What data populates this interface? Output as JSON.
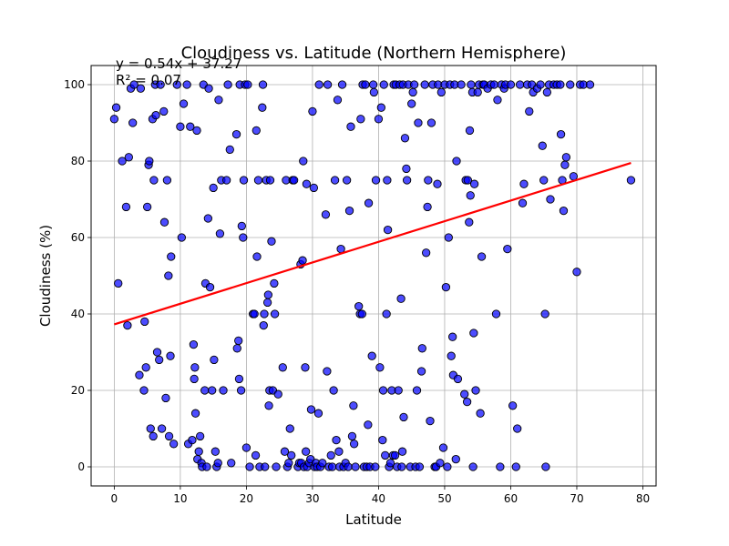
{
  "chart_data": {
    "type": "scatter",
    "title": "Cloudiness vs. Latitude (Northern Hemisphere)",
    "xlabel": "Latitude",
    "ylabel": "Cloudiness (%)",
    "xlim": [
      -3.5,
      82
    ],
    "ylim": [
      -5,
      105
    ],
    "xticks": [
      0,
      10,
      20,
      30,
      40,
      50,
      60,
      70,
      80
    ],
    "yticks": [
      0,
      20,
      40,
      60,
      80,
      100
    ],
    "grid": true,
    "point_color": "#0000ff",
    "point_edge_color": "#000000",
    "regression": {
      "slope": 0.54,
      "intercept": 37.27,
      "x_range": [
        0,
        78.2
      ],
      "color": "#ff0000"
    },
    "annotations": {
      "equation": "y = 0.54x + 37.27",
      "r_squared": "R² = 0.07"
    },
    "points": [
      [
        0,
        91
      ],
      [
        0.3,
        94
      ],
      [
        0.6,
        48
      ],
      [
        1.2,
        80
      ],
      [
        1.8,
        68
      ],
      [
        2,
        37
      ],
      [
        2.2,
        81
      ],
      [
        2.5,
        99
      ],
      [
        2.8,
        90
      ],
      [
        3,
        100
      ],
      [
        3.8,
        24
      ],
      [
        4,
        99
      ],
      [
        4.5,
        20
      ],
      [
        4.6,
        38
      ],
      [
        4.8,
        26
      ],
      [
        5,
        68
      ],
      [
        5.2,
        79
      ],
      [
        5.3,
        80
      ],
      [
        5.5,
        10
      ],
      [
        5.8,
        91
      ],
      [
        5.9,
        8
      ],
      [
        6,
        75
      ],
      [
        6.2,
        100
      ],
      [
        6.3,
        92
      ],
      [
        6.5,
        30
      ],
      [
        6.8,
        28
      ],
      [
        7,
        100
      ],
      [
        7.2,
        10
      ],
      [
        7.5,
        93
      ],
      [
        7.6,
        64
      ],
      [
        7.8,
        18
      ],
      [
        8,
        75
      ],
      [
        8.2,
        50
      ],
      [
        8.3,
        8
      ],
      [
        8.5,
        29
      ],
      [
        8.6,
        55
      ],
      [
        9,
        6
      ],
      [
        9.5,
        100
      ],
      [
        10,
        89
      ],
      [
        10.2,
        60
      ],
      [
        10.5,
        95
      ],
      [
        11,
        100
      ],
      [
        11.2,
        6
      ],
      [
        11.5,
        89
      ],
      [
        11.8,
        7
      ],
      [
        12,
        32
      ],
      [
        12.1,
        23
      ],
      [
        12.2,
        26
      ],
      [
        12.3,
        14
      ],
      [
        12.5,
        88
      ],
      [
        12.6,
        2
      ],
      [
        12.8,
        4
      ],
      [
        13,
        8
      ],
      [
        13.2,
        1
      ],
      [
        13.3,
        0
      ],
      [
        13.5,
        100
      ],
      [
        13.7,
        20
      ],
      [
        13.8,
        48
      ],
      [
        14,
        0
      ],
      [
        14.2,
        65
      ],
      [
        14.3,
        99
      ],
      [
        14.5,
        47
      ],
      [
        14.8,
        20
      ],
      [
        15,
        73
      ],
      [
        15.1,
        28
      ],
      [
        15.3,
        4
      ],
      [
        15.5,
        0
      ],
      [
        15.7,
        1
      ],
      [
        15.8,
        96
      ],
      [
        16,
        61
      ],
      [
        16.2,
        75
      ],
      [
        16.5,
        20
      ],
      [
        17,
        75
      ],
      [
        17.2,
        100
      ],
      [
        17.5,
        83
      ],
      [
        17.7,
        1
      ],
      [
        18.5,
        87
      ],
      [
        18.6,
        31
      ],
      [
        18.8,
        33
      ],
      [
        18.9,
        23
      ],
      [
        19,
        100
      ],
      [
        19.2,
        20
      ],
      [
        19.3,
        63
      ],
      [
        19.5,
        60
      ],
      [
        19.6,
        75
      ],
      [
        19.8,
        100
      ],
      [
        20,
        5
      ],
      [
        20.2,
        100
      ],
      [
        20.5,
        0
      ],
      [
        21,
        40
      ],
      [
        21.2,
        40
      ],
      [
        21.4,
        3
      ],
      [
        21.5,
        88
      ],
      [
        21.6,
        55
      ],
      [
        21.8,
        75
      ],
      [
        22,
        0
      ],
      [
        22.4,
        94
      ],
      [
        22.5,
        100
      ],
      [
        22.6,
        37
      ],
      [
        22.7,
        40
      ],
      [
        22.8,
        0
      ],
      [
        23,
        75
      ],
      [
        23.2,
        43
      ],
      [
        23.3,
        45
      ],
      [
        23.4,
        16
      ],
      [
        23.5,
        20
      ],
      [
        23.6,
        75
      ],
      [
        23.8,
        59
      ],
      [
        24,
        20
      ],
      [
        24.2,
        48
      ],
      [
        24.3,
        40
      ],
      [
        24.5,
        0
      ],
      [
        24.8,
        19
      ],
      [
        25.5,
        26
      ],
      [
        25.8,
        4
      ],
      [
        26,
        75
      ],
      [
        26.2,
        0
      ],
      [
        26.4,
        1
      ],
      [
        26.6,
        10
      ],
      [
        26.8,
        3
      ],
      [
        27,
        75
      ],
      [
        27.2,
        75
      ],
      [
        27.8,
        0
      ],
      [
        28,
        1
      ],
      [
        28.2,
        53
      ],
      [
        28.3,
        1
      ],
      [
        28.5,
        54
      ],
      [
        28.6,
        80
      ],
      [
        28.7,
        0
      ],
      [
        28.9,
        26
      ],
      [
        29,
        4
      ],
      [
        29.1,
        74
      ],
      [
        29.2,
        0
      ],
      [
        29.5,
        1
      ],
      [
        29.7,
        2
      ],
      [
        29.8,
        15
      ],
      [
        30,
        93
      ],
      [
        30.2,
        73
      ],
      [
        30.3,
        0
      ],
      [
        30.5,
        1
      ],
      [
        30.7,
        0
      ],
      [
        30.9,
        14
      ],
      [
        31,
        100
      ],
      [
        31.2,
        0
      ],
      [
        31.5,
        1
      ],
      [
        32,
        66
      ],
      [
        32.2,
        25
      ],
      [
        32.3,
        100
      ],
      [
        32.5,
        0
      ],
      [
        32.8,
        3
      ],
      [
        33,
        0
      ],
      [
        33.2,
        20
      ],
      [
        33.4,
        75
      ],
      [
        33.6,
        7
      ],
      [
        33.8,
        96
      ],
      [
        34,
        4
      ],
      [
        34.1,
        0
      ],
      [
        34.3,
        57
      ],
      [
        34.5,
        100
      ],
      [
        34.7,
        0
      ],
      [
        35,
        1
      ],
      [
        35.2,
        75
      ],
      [
        35.4,
        0
      ],
      [
        35.6,
        67
      ],
      [
        35.8,
        89
      ],
      [
        36,
        8
      ],
      [
        36.2,
        16
      ],
      [
        36.3,
        6
      ],
      [
        36.5,
        0
      ],
      [
        37,
        42
      ],
      [
        37.2,
        40
      ],
      [
        37.3,
        91
      ],
      [
        37.5,
        40
      ],
      [
        37.6,
        100
      ],
      [
        37.8,
        0
      ],
      [
        38,
        100
      ],
      [
        38.2,
        0
      ],
      [
        38.4,
        11
      ],
      [
        38.5,
        69
      ],
      [
        38.7,
        0
      ],
      [
        39,
        29
      ],
      [
        39.2,
        100
      ],
      [
        39.3,
        98
      ],
      [
        39.5,
        0
      ],
      [
        39.6,
        75
      ],
      [
        40,
        91
      ],
      [
        40.2,
        26
      ],
      [
        40.4,
        94
      ],
      [
        40.6,
        7
      ],
      [
        40.7,
        20
      ],
      [
        40.8,
        100
      ],
      [
        41,
        3
      ],
      [
        41.2,
        40
      ],
      [
        41.3,
        75
      ],
      [
        41.4,
        62
      ],
      [
        41.6,
        0
      ],
      [
        41.8,
        1
      ],
      [
        42,
        20
      ],
      [
        42.2,
        3
      ],
      [
        42.3,
        100
      ],
      [
        42.5,
        3
      ],
      [
        42.6,
        100
      ],
      [
        42.8,
        0
      ],
      [
        43,
        20
      ],
      [
        43.2,
        100
      ],
      [
        43.4,
        44
      ],
      [
        43.5,
        0
      ],
      [
        43.6,
        4
      ],
      [
        43.7,
        100
      ],
      [
        43.8,
        13
      ],
      [
        44,
        86
      ],
      [
        44.2,
        78
      ],
      [
        44.3,
        75
      ],
      [
        44.5,
        100
      ],
      [
        44.8,
        0
      ],
      [
        45,
        95
      ],
      [
        45.2,
        98
      ],
      [
        45.4,
        100
      ],
      [
        45.6,
        0
      ],
      [
        45.8,
        20
      ],
      [
        46,
        90
      ],
      [
        46.2,
        0
      ],
      [
        46.5,
        25
      ],
      [
        46.6,
        31
      ],
      [
        47,
        100
      ],
      [
        47.2,
        56
      ],
      [
        47.4,
        68
      ],
      [
        47.5,
        75
      ],
      [
        47.8,
        12
      ],
      [
        48,
        90
      ],
      [
        48.2,
        100
      ],
      [
        48.5,
        0
      ],
      [
        48.7,
        0
      ],
      [
        48.9,
        74
      ],
      [
        49,
        100
      ],
      [
        49.3,
        1
      ],
      [
        49.5,
        98
      ],
      [
        49.8,
        5
      ],
      [
        50,
        100
      ],
      [
        50.2,
        47
      ],
      [
        50.4,
        0
      ],
      [
        50.6,
        60
      ],
      [
        50.8,
        100
      ],
      [
        51,
        29
      ],
      [
        51.2,
        34
      ],
      [
        51.3,
        24
      ],
      [
        51.5,
        100
      ],
      [
        51.7,
        2
      ],
      [
        51.8,
        80
      ],
      [
        52,
        23
      ],
      [
        52.5,
        100
      ],
      [
        53,
        19
      ],
      [
        53.2,
        75
      ],
      [
        53.4,
        17
      ],
      [
        53.5,
        75
      ],
      [
        53.7,
        64
      ],
      [
        53.8,
        88
      ],
      [
        53.9,
        71
      ],
      [
        54,
        100
      ],
      [
        54.2,
        98
      ],
      [
        54.3,
        0
      ],
      [
        54.4,
        35
      ],
      [
        54.5,
        74
      ],
      [
        54.7,
        20
      ],
      [
        55,
        98
      ],
      [
        55.2,
        100
      ],
      [
        55.4,
        14
      ],
      [
        55.6,
        55
      ],
      [
        55.8,
        100
      ],
      [
        56,
        100
      ],
      [
        56.5,
        99
      ],
      [
        57,
        100
      ],
      [
        57.5,
        100
      ],
      [
        57.8,
        40
      ],
      [
        58,
        96
      ],
      [
        58.4,
        0
      ],
      [
        58.6,
        100
      ],
      [
        59,
        99
      ],
      [
        59.2,
        100
      ],
      [
        59.5,
        57
      ],
      [
        60,
        100
      ],
      [
        60.3,
        16
      ],
      [
        60.8,
        0
      ],
      [
        61,
        10
      ],
      [
        61.4,
        100
      ],
      [
        61.8,
        69
      ],
      [
        62,
        74
      ],
      [
        62.5,
        100
      ],
      [
        62.8,
        93
      ],
      [
        63.2,
        100
      ],
      [
        63.4,
        98
      ],
      [
        64,
        99
      ],
      [
        64.5,
        100
      ],
      [
        64.8,
        84
      ],
      [
        65,
        75
      ],
      [
        65.2,
        40
      ],
      [
        65.3,
        0
      ],
      [
        65.5,
        98
      ],
      [
        65.8,
        100
      ],
      [
        66,
        70
      ],
      [
        66.5,
        100
      ],
      [
        67,
        100
      ],
      [
        67.5,
        100
      ],
      [
        67.6,
        87
      ],
      [
        67.8,
        75
      ],
      [
        68,
        67
      ],
      [
        68.2,
        79
      ],
      [
        68.4,
        81
      ],
      [
        69,
        100
      ],
      [
        69.5,
        76
      ],
      [
        70,
        51
      ],
      [
        70.5,
        100
      ],
      [
        71,
        100
      ],
      [
        72,
        100
      ],
      [
        78.2,
        75
      ]
    ]
  }
}
